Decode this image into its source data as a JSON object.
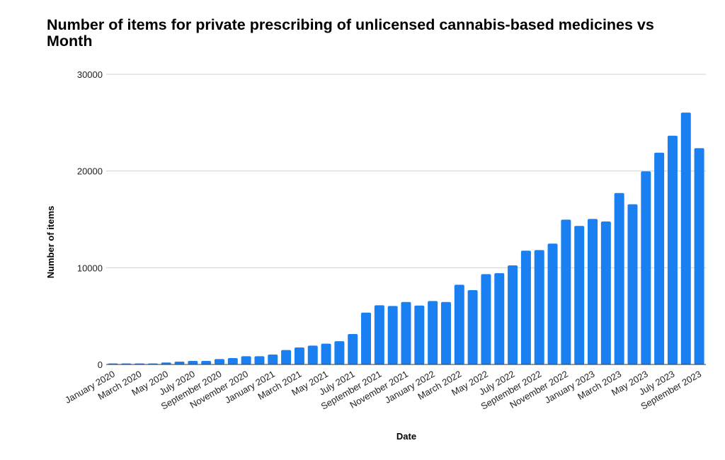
{
  "chart_data": {
    "type": "bar",
    "title": "Number of items for private prescribing of unlicensed cannabis-based medicines vs Month",
    "xlabel": "Date",
    "ylabel": "Number of items",
    "ylim": [
      0,
      30000
    ],
    "yticks": [
      "0",
      "10000",
      "20000",
      "30000"
    ],
    "grid": true,
    "color": "#1a7ff0",
    "categories": [
      "January 2020",
      "February 2020",
      "March 2020",
      "April 2020",
      "May 2020",
      "June 2020",
      "July 2020",
      "August 2020",
      "September 2020",
      "October 2020",
      "November 2020",
      "December 2020",
      "January 2021",
      "February 2021",
      "March 2021",
      "April 2021",
      "May 2021",
      "June 2021",
      "July 2021",
      "August 2021",
      "September 2021",
      "October 2021",
      "November 2021",
      "December 2021",
      "January 2022",
      "February 2022",
      "March 2022",
      "April 2022",
      "May 2022",
      "June 2022",
      "July 2022",
      "August 2022",
      "September 2022",
      "October 2022",
      "November 2022",
      "December 2022",
      "January 2023",
      "February 2023",
      "March 2023",
      "April 2023",
      "May 2023",
      "June 2023",
      "July 2023",
      "August 2023",
      "September 2023"
    ],
    "values": [
      100,
      100,
      100,
      100,
      200,
      290,
      370,
      370,
      560,
      660,
      850,
      850,
      1020,
      1490,
      1760,
      1950,
      2150,
      2410,
      3150,
      5360,
      6120,
      6050,
      6460,
      6090,
      6560,
      6460,
      8240,
      7680,
      9340,
      9440,
      10240,
      11760,
      11830,
      12490,
      14970,
      14320,
      15050,
      14780,
      17730,
      16560,
      19970,
      21900,
      23650,
      26040,
      22360
    ],
    "xtick_labels": [
      "January 2020",
      "March 2020",
      "May 2020",
      "July 2020",
      "September 2020",
      "November 2020",
      "January 2021",
      "March 2021",
      "May 2021",
      "July 2021",
      "September 2021",
      "November 2021",
      "January 2022",
      "March 2022",
      "May 2022",
      "July 2022",
      "September 2022",
      "November 2022",
      "January 2023",
      "March 2023",
      "May 2023",
      "July 2023",
      "September 2023"
    ]
  }
}
